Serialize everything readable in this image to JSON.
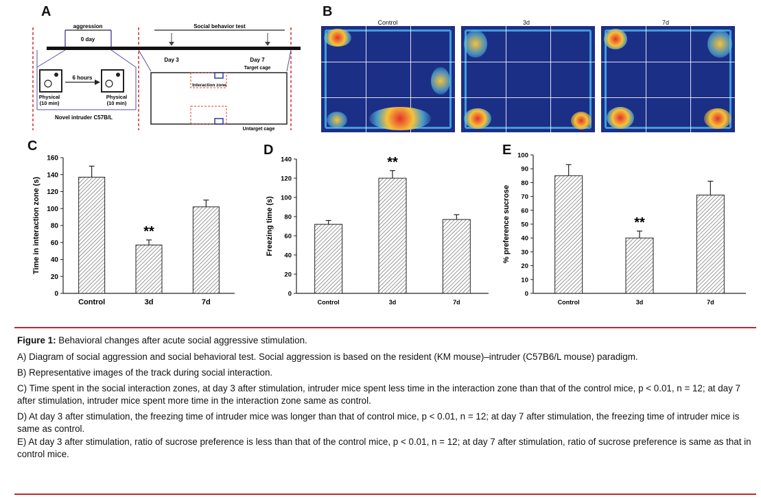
{
  "panel_labels": {
    "a": "A",
    "b": "B",
    "c": "C",
    "d": "D",
    "e": "E"
  },
  "diagram": {
    "aggression": "aggression",
    "day0": "0 day",
    "social_test": "Social behavior test",
    "day3": "Day 3",
    "day7": "Day 7",
    "six_hours": "6 hours",
    "physical_left": "Physical",
    "physical_left_time": "(10 min)",
    "physical_right": "Physical",
    "physical_right_time": "(10 min)",
    "novel_intruder": "Novel intruder C57B/L",
    "target_cage": "Target cage",
    "interaction_zone": "Interaction zone",
    "untarget_cage": "Untarget cage"
  },
  "heatmaps": [
    "Control",
    "3d",
    "7d"
  ],
  "chart_data": [
    {
      "type": "bar",
      "panel": "C",
      "categories": [
        "Control",
        "3d",
        "7d"
      ],
      "values": [
        137,
        57,
        102
      ],
      "errors": [
        13,
        6,
        8
      ],
      "significance": [
        "",
        "**",
        ""
      ],
      "ylabel": "Time in interaction zone (s)",
      "ylim": [
        0,
        160
      ],
      "yticks": [
        0,
        20,
        40,
        60,
        80,
        100,
        120,
        140,
        160
      ]
    },
    {
      "type": "bar",
      "panel": "D",
      "categories": [
        "Control",
        "3d",
        "7d"
      ],
      "values": [
        72,
        120,
        77
      ],
      "errors": [
        4,
        8,
        5
      ],
      "significance": [
        "",
        "**",
        ""
      ],
      "ylabel": "Freezing time (s)",
      "ylim": [
        0,
        140
      ],
      "yticks": [
        0,
        20,
        40,
        60,
        80,
        100,
        120,
        140
      ]
    },
    {
      "type": "bar",
      "panel": "E",
      "categories": [
        "Control",
        "3d",
        "7d"
      ],
      "values": [
        85,
        40,
        71
      ],
      "errors": [
        8,
        5,
        10
      ],
      "significance": [
        "",
        "**",
        ""
      ],
      "ylabel": "% preference sucrose",
      "ylim": [
        0,
        100
      ],
      "yticks": [
        0,
        10,
        20,
        30,
        40,
        50,
        60,
        70,
        80,
        90,
        100
      ]
    }
  ],
  "caption": {
    "title": "Figure 1:",
    "subtitle": " Behavioral changes after acute social aggressive stimulation.",
    "lines": [
      "A) Diagram of social aggression and social behavioral test. Social aggression is based on the resident (KM mouse)–intruder (C57B6/L mouse) paradigm.",
      "B) Representative images of the track during social interaction.",
      "C) Time spent in the social interaction zones, at day 3 after stimulation, intruder mice spent less time in the interaction zone than that of the control mice, p < 0.01, n = 12; at day 7 after stimulation, intruder mice spent more time in the interaction zone same as control.",
      "D) At day 3 after stimulation, the freezing time of intruder mice was longer than that of control mice, p < 0.01, n = 12; at day 7 after stimulation, the freezing time of intruder mice is same as control.",
      "E) At day 3 after stimulation, ratio of sucrose preference is less than that of the control mice, p < 0.01, n = 12; at day 7 after stimulation, ratio of sucrose preference is same as that in control mice."
    ]
  }
}
